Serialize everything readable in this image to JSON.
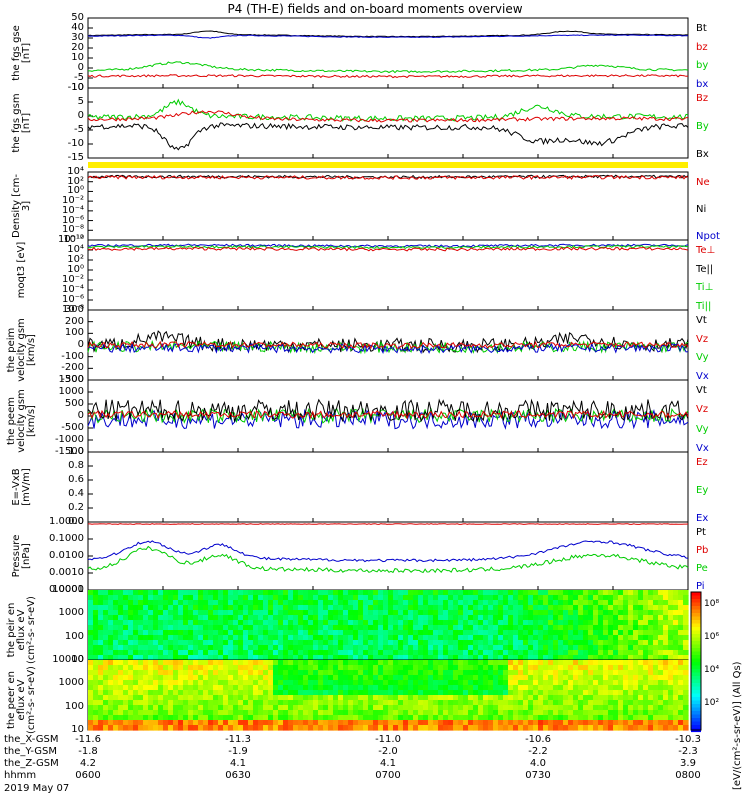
{
  "title": "P4 (TH-E) fields and on-board moments overview",
  "date": "2019 May 07",
  "colors": {
    "black": "#000000",
    "red": "#dd0000",
    "green": "#00cc00",
    "blue": "#0000cc",
    "yellow": "#ffee00"
  },
  "chart_data": [
    {
      "type": "line",
      "id": "fgs-gse",
      "ylabel": "the\nfgs\ngse\n[nT]",
      "yticks": [
        "50",
        "40",
        "30",
        "20",
        "10",
        "0",
        "-5",
        "-10"
      ],
      "legend": [
        {
          "name": "Bt",
          "color": "black"
        },
        {
          "name": "bz",
          "color": "red"
        },
        {
          "name": "by",
          "color": "green"
        },
        {
          "name": "bx",
          "color": "blue"
        }
      ]
    },
    {
      "type": "line",
      "id": "fgs-gsm",
      "ylabel": "the\nfgs\ngsm\n[nT]",
      "yticks": [
        "10",
        "5",
        "0",
        "-5",
        "-10",
        "-15"
      ],
      "legend": [
        {
          "name": "Bz",
          "color": "red"
        },
        {
          "name": "By",
          "color": "green"
        },
        {
          "name": "Bx",
          "color": "black"
        }
      ]
    },
    {
      "type": "line",
      "id": "density",
      "ylabel": "Density\n[cm-3]",
      "yticks": [
        "10⁴",
        "10²",
        "10⁰",
        "10⁻²",
        "10⁻⁴",
        "10⁻⁶",
        "10⁻⁸",
        "10⁻¹⁰"
      ],
      "legend": [
        {
          "name": "Ne",
          "color": "red"
        },
        {
          "name": "Ni",
          "color": "black"
        },
        {
          "name": "Npot",
          "color": "blue"
        }
      ]
    },
    {
      "type": "line",
      "id": "temp",
      "ylabel": "moqt3\n[eV]",
      "yticks": [
        "10¹²",
        "10⁴",
        "10²",
        "10⁰",
        "10⁻²",
        "10⁻⁴",
        "10⁻⁶",
        "10⁻⁸"
      ],
      "legend": [
        {
          "name": "Te⊥",
          "color": "red"
        },
        {
          "name": "Te||",
          "color": "black"
        },
        {
          "name": "Ti⊥",
          "color": "green"
        },
        {
          "name": "Ti||",
          "color": "green"
        }
      ]
    },
    {
      "type": "line",
      "id": "peim-velocity",
      "ylabel": "the\npeim\nvelocity\ngsm\n[km/s]",
      "yticks": [
        "300",
        "200",
        "100",
        "0",
        "-100",
        "-200",
        "-300"
      ],
      "legend": [
        {
          "name": "Vt",
          "color": "black"
        },
        {
          "name": "Vz",
          "color": "red"
        },
        {
          "name": "Vy",
          "color": "green"
        },
        {
          "name": "Vx",
          "color": "blue"
        }
      ]
    },
    {
      "type": "line",
      "id": "peem-velocity",
      "ylabel": "the\npeem\nvelocity\ngsm\n[km/s]",
      "yticks": [
        "1500",
        "1000",
        "500",
        "0",
        "-500",
        "-1000",
        "-1500"
      ],
      "legend": [
        {
          "name": "Vt",
          "color": "black"
        },
        {
          "name": "Vz",
          "color": "red"
        },
        {
          "name": "Vy",
          "color": "green"
        },
        {
          "name": "Vx",
          "color": "blue"
        }
      ]
    },
    {
      "type": "line",
      "id": "efield",
      "ylabel": "E=-VxB\n[mV/m]",
      "yticks": [
        "1.0",
        "0.8",
        "0.6",
        "0.4",
        "0.2",
        "0.0"
      ],
      "legend": [
        {
          "name": "Ez",
          "color": "red"
        },
        {
          "name": "Ey",
          "color": "green"
        },
        {
          "name": "Ex",
          "color": "blue"
        }
      ]
    },
    {
      "type": "line",
      "id": "pressure",
      "ylabel": "Pressure\n[nPa]",
      "yticks": [
        "1.0000",
        "0.1000",
        "0.0100",
        "0.0010",
        "0.0001"
      ],
      "legend": [
        {
          "name": "Pt",
          "color": "black"
        },
        {
          "name": "Pb",
          "color": "red"
        },
        {
          "name": "Pe",
          "color": "green"
        },
        {
          "name": "Pi",
          "color": "blue"
        }
      ]
    },
    {
      "type": "heatmap",
      "id": "peir",
      "ylabel": "the\npeir\nen\neflux\neV\n(cm²-s-\nsr-eV)",
      "yticks": [
        "10000",
        "1000",
        "100",
        "10"
      ]
    },
    {
      "type": "heatmap",
      "id": "peer",
      "ylabel": "the\npeer\nen\neflux\neV\n(cm²-s-\nsr-eV)",
      "yticks": [
        "10000",
        "1000",
        "100",
        "10"
      ]
    }
  ],
  "colorbar": {
    "labels": [
      "10⁸",
      "10⁶",
      "10⁴",
      "10²"
    ],
    "title": "[eV/(cm²-s-sr-eV)] (All Qs)"
  },
  "ephemeris": {
    "row_labels": [
      "the_X-GSM",
      "the_Y-GSM",
      "the_Z-GSM",
      "hhmm"
    ],
    "columns": [
      {
        "x": "-11.6",
        "y": "-1.8",
        "z": "4.2",
        "t": "0600"
      },
      {
        "x": "-11.3",
        "y": "-1.9",
        "z": "4.1",
        "t": "0630"
      },
      {
        "x": "-11.0",
        "y": "-2.0",
        "z": "4.1",
        "t": "0700"
      },
      {
        "x": "-10.6",
        "y": "-2.2",
        "z": "4.0",
        "t": "0730"
      },
      {
        "x": "-10.3",
        "y": "-2.3",
        "z": "3.9",
        "t": "0800"
      }
    ]
  }
}
